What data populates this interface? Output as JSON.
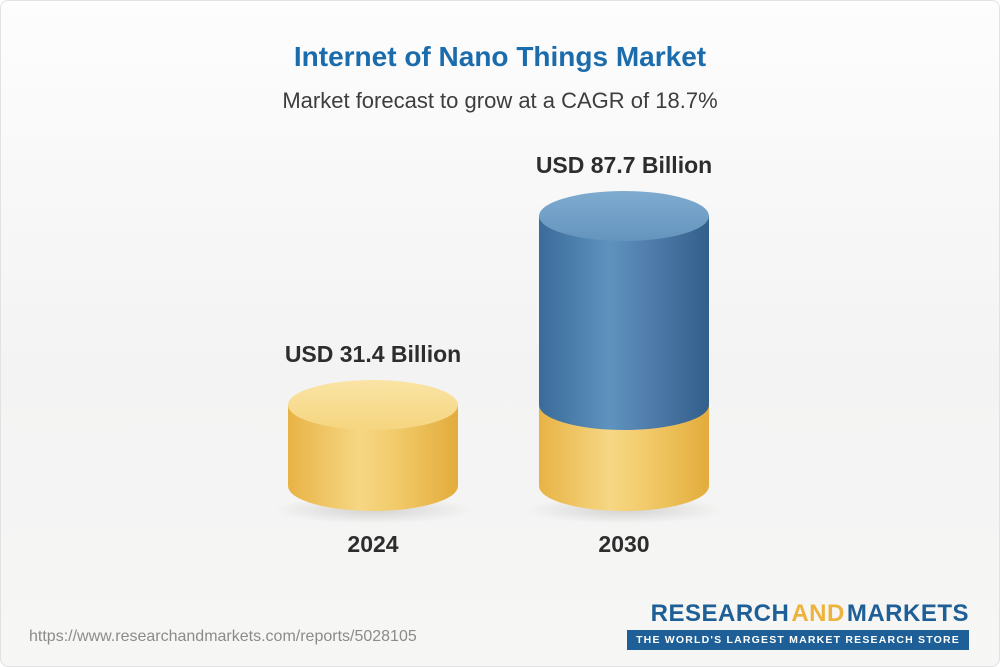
{
  "header": {
    "title": "Internet of Nano Things Market",
    "subtitle": "Market forecast to grow at a CAGR of 18.7%"
  },
  "chart_data": {
    "type": "bar",
    "bar_style": "3d-cylinder",
    "title": "Internet of Nano Things Market",
    "subtitle": "Market forecast to grow at a CAGR of 18.7%",
    "cagr": "18.7%",
    "unit": "USD Billion",
    "categories": [
      "2024",
      "2030"
    ],
    "values": [
      31.4,
      87.7
    ],
    "value_labels": [
      "USD 31.4 Billion",
      "USD 87.7 Billion"
    ],
    "bar_colors": [
      "#f2cb6b",
      "#4d7fa9"
    ],
    "axes": "none",
    "grid": false,
    "legend": false
  },
  "footer": {
    "url": "https://www.researchandmarkets.com/reports/5028105",
    "logo": {
      "part1": "RESEARCH",
      "part2": "AND",
      "part3": "MARKETS",
      "tagline": "THE WORLD'S LARGEST MARKET RESEARCH STORE"
    }
  },
  "colors": {
    "title_blue": "#1b6cac",
    "logo_blue": "#1d5f96",
    "logo_yellow": "#eeb33c",
    "bar_yellow": "#f2cb6b",
    "bar_blue": "#4d7fa9"
  }
}
